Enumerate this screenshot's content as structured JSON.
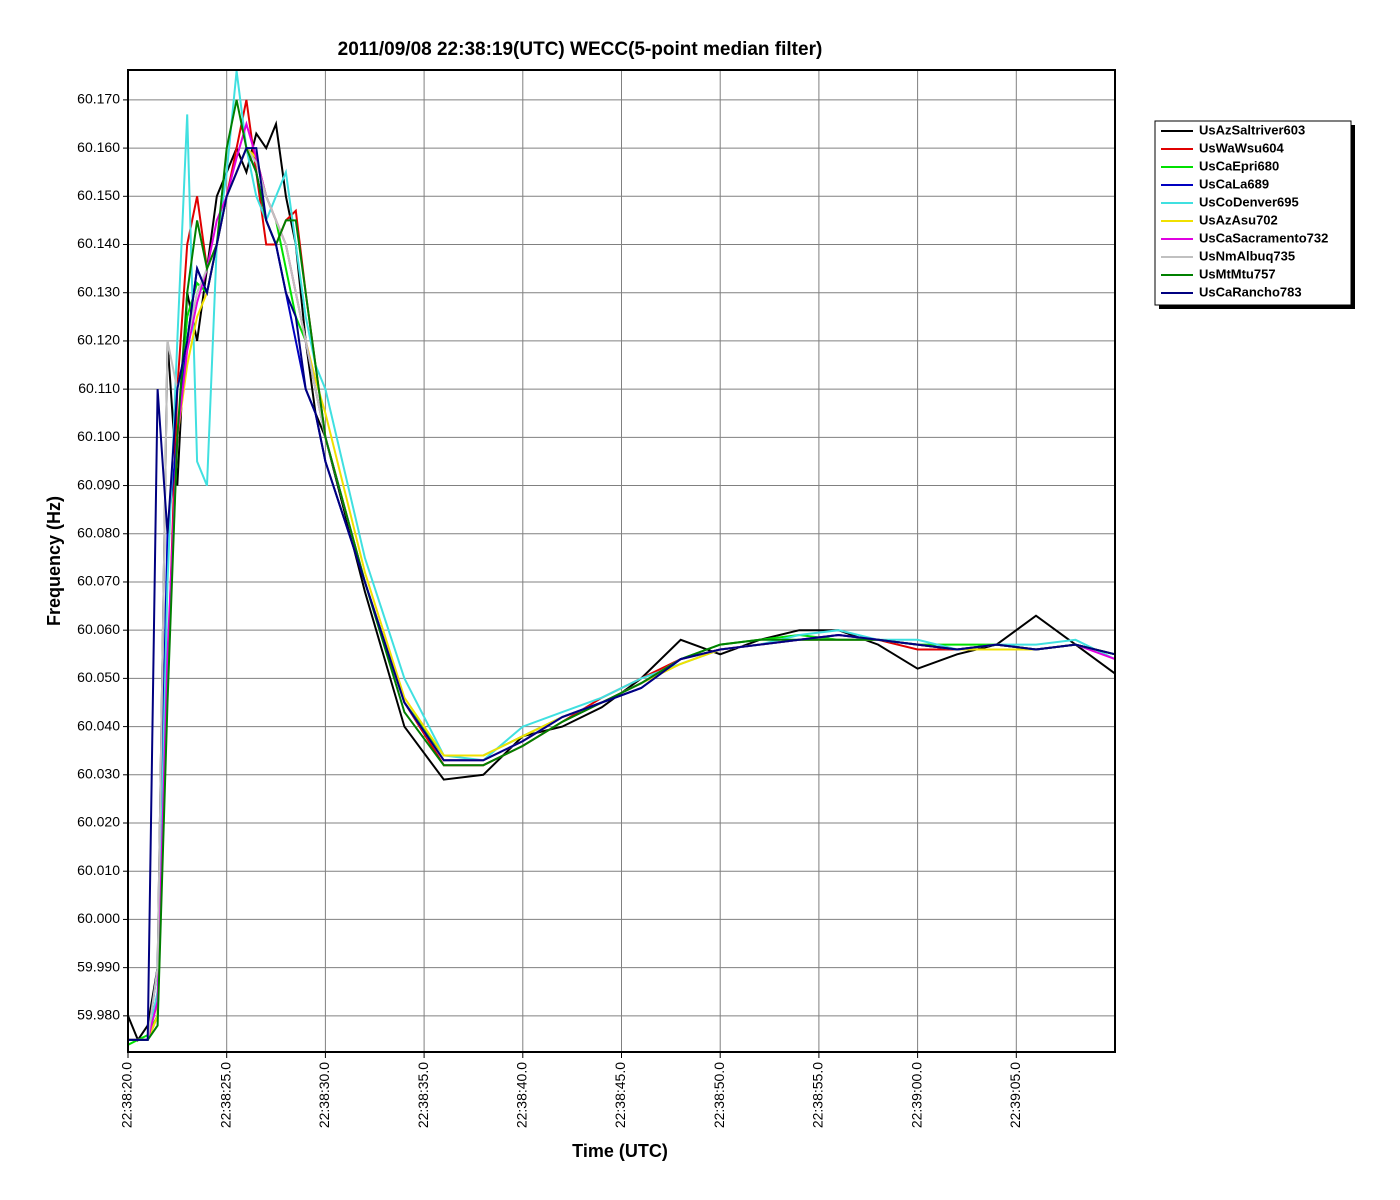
{
  "chart_data": {
    "type": "line",
    "title": "2011/09/08 22:38:19(UTC) WECC(5-point median filter)",
    "x_label": "Time (UTC)",
    "y_label": "Frequency (Hz)",
    "grid": true,
    "legend": "right",
    "x": [
      "22:38:20.0",
      "22:38:20.5",
      "22:38:21.0",
      "22:38:21.5",
      "22:38:22.0",
      "22:38:22.5",
      "22:38:23.0",
      "22:38:23.5",
      "22:38:24.0",
      "22:38:24.5",
      "22:38:25.0",
      "22:38:25.5",
      "22:38:26.0",
      "22:38:26.5",
      "22:38:27.0",
      "22:38:27.5",
      "22:38:28.0",
      "22:38:28.5",
      "22:38:29.0",
      "22:38:29.5",
      "22:38:30.0",
      "22:38:32.0",
      "22:38:34.0",
      "22:38:36.0",
      "22:38:38.0",
      "22:38:40.0",
      "22:38:42.0",
      "22:38:44.0",
      "22:38:46.0",
      "22:38:48.0",
      "22:38:50.0",
      "22:38:52.0",
      "22:38:54.0",
      "22:38:56.0",
      "22:38:58.0",
      "22:39:00.0",
      "22:39:02.0",
      "22:39:04.0",
      "22:39:06.0",
      "22:39:08.0",
      "22:39:10.0"
    ],
    "xlim": [
      "22:38:20.0",
      "22:39:10.0"
    ],
    "xticks": [
      "22:38:20.0",
      "22:38:25.0",
      "22:38:30.0",
      "22:38:35.0",
      "22:38:40.0",
      "22:38:45.0",
      "22:38:50.0",
      "22:38:55.0",
      "22:39:00.0",
      "22:39:05.0"
    ],
    "ylim": [
      59.9725,
      60.1762
    ],
    "yticks": [
      {
        "value": 59.98,
        "label": "59.980"
      },
      {
        "value": 59.99,
        "label": "59.990"
      },
      {
        "value": 60.0,
        "label": "60.000"
      },
      {
        "value": 60.01,
        "label": "60.010"
      },
      {
        "value": 60.02,
        "label": "60.020"
      },
      {
        "value": 60.03,
        "label": "60.030"
      },
      {
        "value": 60.04,
        "label": "60.040"
      },
      {
        "value": 60.05,
        "label": "60.050"
      },
      {
        "value": 60.06,
        "label": "60.060"
      },
      {
        "value": 60.07,
        "label": "60.070"
      },
      {
        "value": 60.08,
        "label": "60.080"
      },
      {
        "value": 60.09,
        "label": "60.090"
      },
      {
        "value": 60.1,
        "label": "60.100"
      },
      {
        "value": 60.11,
        "label": "60.110"
      },
      {
        "value": 60.12,
        "label": "60.120"
      },
      {
        "value": 60.13,
        "label": "60.130"
      },
      {
        "value": 60.14,
        "label": "60.140"
      },
      {
        "value": 60.15,
        "label": "60.150"
      },
      {
        "value": 60.16,
        "label": "60.160"
      },
      {
        "value": 60.17,
        "label": "60.170"
      }
    ],
    "series": [
      {
        "name": "UsAzSaltriver603",
        "color": "#000000",
        "values": [
          59.98,
          59.975,
          59.978,
          59.99,
          60.12,
          60.09,
          60.13,
          60.12,
          60.135,
          60.15,
          60.155,
          60.16,
          60.155,
          60.163,
          60.16,
          60.165,
          60.15,
          60.14,
          60.12,
          60.105,
          60.1,
          60.068,
          60.04,
          60.029,
          60.03,
          60.038,
          60.04,
          60.044,
          60.05,
          60.058,
          60.055,
          60.058,
          60.06,
          60.06,
          60.057,
          60.052,
          60.055,
          60.057,
          60.063,
          60.057,
          60.051
        ]
      },
      {
        "name": "UsWaWsu604",
        "color": "#e00000",
        "values": [
          59.975,
          59.975,
          59.975,
          59.98,
          60.05,
          60.11,
          60.14,
          60.15,
          60.135,
          60.14,
          60.15,
          60.16,
          60.17,
          60.155,
          60.14,
          60.14,
          60.145,
          60.147,
          60.13,
          60.115,
          60.1,
          60.07,
          60.045,
          60.032,
          60.032,
          60.036,
          60.041,
          60.046,
          60.05,
          60.054,
          60.056,
          60.057,
          60.058,
          60.058,
          60.058,
          60.056,
          60.056,
          60.057,
          60.056,
          60.057,
          60.055
        ]
      },
      {
        "name": "UsCaEpri680",
        "color": "#00e000",
        "values": [
          59.974,
          59.975,
          59.976,
          59.98,
          60.05,
          60.1,
          60.125,
          60.132,
          60.13,
          60.14,
          60.15,
          60.155,
          60.16,
          60.158,
          60.15,
          60.145,
          60.135,
          60.125,
          60.12,
          60.11,
          60.1,
          60.07,
          60.045,
          60.034,
          60.034,
          60.038,
          60.042,
          60.045,
          60.049,
          60.054,
          60.057,
          60.058,
          60.059,
          60.058,
          60.058,
          60.057,
          60.057,
          60.057,
          60.056,
          60.057,
          60.055
        ]
      },
      {
        "name": "UsCaLa689",
        "color": "#0000c0",
        "values": [
          59.975,
          59.975,
          59.975,
          59.99,
          60.08,
          60.1,
          60.12,
          60.135,
          60.13,
          60.14,
          60.15,
          60.155,
          60.16,
          60.155,
          60.145,
          60.14,
          60.13,
          60.12,
          60.11,
          60.105,
          60.095,
          60.07,
          60.045,
          60.033,
          60.033,
          60.037,
          60.042,
          60.045,
          60.048,
          60.054,
          60.056,
          60.057,
          60.058,
          60.059,
          60.058,
          60.057,
          60.056,
          60.057,
          60.056,
          60.057,
          60.055
        ]
      },
      {
        "name": "UsCoDenver695",
        "color": "#40e0e0",
        "values": [
          59.975,
          59.975,
          59.975,
          59.985,
          60.07,
          60.12,
          60.167,
          60.095,
          60.09,
          60.14,
          60.155,
          60.176,
          60.16,
          60.15,
          60.145,
          60.15,
          60.155,
          60.14,
          60.125,
          60.115,
          60.11,
          60.075,
          60.05,
          60.034,
          60.033,
          60.04,
          60.043,
          60.046,
          60.05,
          60.053,
          60.056,
          60.057,
          60.059,
          60.06,
          60.058,
          60.058,
          60.056,
          60.057,
          60.057,
          60.058,
          60.054
        ]
      },
      {
        "name": "UsAzAsu702",
        "color": "#f0e000",
        "values": [
          59.975,
          59.975,
          59.975,
          59.98,
          60.05,
          60.1,
          60.115,
          60.125,
          60.13,
          60.14,
          60.15,
          60.155,
          60.16,
          60.158,
          60.15,
          60.145,
          60.14,
          60.13,
          60.12,
          60.112,
          60.105,
          60.072,
          60.046,
          60.034,
          60.034,
          60.038,
          60.042,
          60.045,
          60.049,
          60.053,
          60.056,
          60.057,
          60.058,
          60.058,
          60.058,
          60.057,
          60.056,
          60.056,
          60.056,
          60.057,
          60.055
        ]
      },
      {
        "name": "UsCaSacramento732",
        "color": "#e000e0",
        "values": [
          59.975,
          59.975,
          59.975,
          59.983,
          60.055,
          60.1,
          60.118,
          60.128,
          60.135,
          60.145,
          60.15,
          60.158,
          60.165,
          60.158,
          60.15,
          60.145,
          60.14,
          60.13,
          60.12,
          60.11,
          60.1,
          60.07,
          60.045,
          60.033,
          60.033,
          60.037,
          60.042,
          60.045,
          60.049,
          60.054,
          60.056,
          60.057,
          60.058,
          60.059,
          60.058,
          60.057,
          60.056,
          60.057,
          60.056,
          60.057,
          60.054
        ]
      },
      {
        "name": "UsNmAlbuq735",
        "color": "#c0c0c0",
        "values": [
          59.975,
          59.975,
          59.975,
          59.99,
          60.12,
          60.11,
          60.12,
          60.13,
          60.135,
          60.14,
          60.15,
          60.155,
          60.16,
          60.157,
          60.15,
          60.145,
          60.14,
          60.13,
          60.12,
          60.11,
          60.1,
          60.07,
          60.045,
          60.033,
          60.033,
          60.037,
          60.042,
          60.045,
          60.049,
          60.054,
          60.056,
          60.057,
          60.058,
          60.058,
          60.058,
          60.057,
          60.056,
          60.057,
          60.056,
          60.057,
          60.055
        ]
      },
      {
        "name": "UsMtMtu757",
        "color": "#008000",
        "values": [
          59.975,
          59.975,
          59.975,
          59.978,
          60.045,
          60.1,
          60.13,
          60.145,
          60.135,
          60.14,
          60.16,
          60.17,
          60.16,
          60.155,
          60.145,
          60.14,
          60.145,
          60.145,
          60.13,
          60.115,
          60.1,
          60.07,
          60.043,
          60.032,
          60.032,
          60.036,
          60.041,
          60.045,
          60.049,
          60.054,
          60.057,
          60.058,
          60.058,
          60.058,
          60.058,
          60.057,
          60.056,
          60.057,
          60.056,
          60.057,
          60.055
        ]
      },
      {
        "name": "UsCaRancho783",
        "color": "#000080",
        "values": [
          59.975,
          59.975,
          59.975,
          60.11,
          60.08,
          60.11,
          60.12,
          60.135,
          60.13,
          60.14,
          60.15,
          60.155,
          60.16,
          60.16,
          60.145,
          60.14,
          60.13,
          60.125,
          60.11,
          60.105,
          60.095,
          60.07,
          60.045,
          60.033,
          60.033,
          60.037,
          60.042,
          60.045,
          60.048,
          60.054,
          60.056,
          60.057,
          60.058,
          60.059,
          60.058,
          60.057,
          60.056,
          60.057,
          60.056,
          60.057,
          60.055
        ]
      }
    ]
  }
}
